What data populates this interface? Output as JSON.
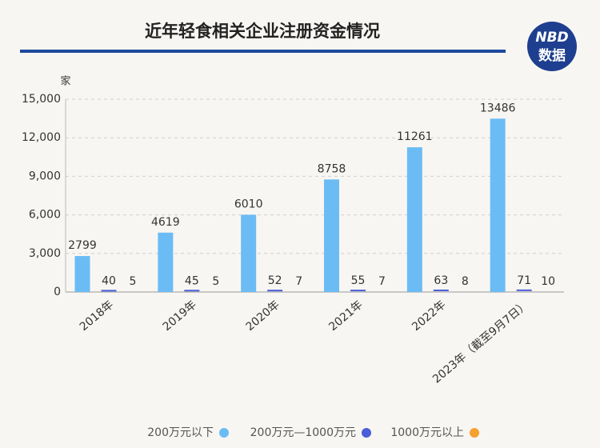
{
  "logo": {
    "name": "NBD",
    "label": "数据"
  },
  "chart_data": {
    "type": "bar",
    "title": "近年轻食相关企业注册资金情况",
    "y_unit": "家",
    "categories": [
      "2018年",
      "2019年",
      "2020年",
      "2021年",
      "2022年",
      "2023年（截至9月7日）"
    ],
    "series": [
      {
        "name": "200万元以下",
        "color": "#6bbcf5",
        "values": [
          2799,
          4619,
          6010,
          8758,
          11261,
          13486
        ]
      },
      {
        "name": "200万元—1000万元",
        "color": "#4a5fd8",
        "values": [
          40,
          45,
          52,
          55,
          63,
          71
        ]
      },
      {
        "name": "1000万元以上",
        "color": "#f5a030",
        "values": [
          5,
          5,
          7,
          7,
          8,
          10
        ]
      }
    ],
    "ylim": [
      0,
      15000
    ],
    "yticks": [
      0,
      {
        "value": 3000,
        "label": "3,000"
      },
      {
        "value": 6000,
        "label": "6,000"
      },
      {
        "value": 9000,
        "label": "9,000"
      },
      {
        "value": 12000,
        "label": "12,000"
      },
      {
        "value": 15000,
        "label": "15,000"
      }
    ],
    "grid": true
  }
}
